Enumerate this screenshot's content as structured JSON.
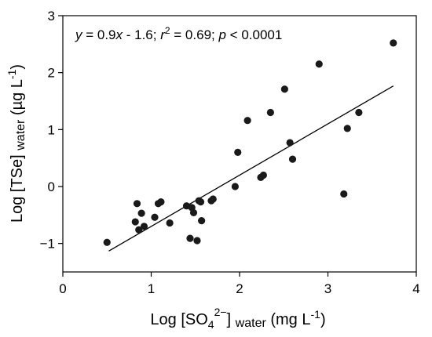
{
  "chart_data": {
    "type": "scatter",
    "xlabel": {
      "prefix": "Log [SO",
      "sub1": "4",
      "sup1": "2−",
      "mid": "] ",
      "sub2": "water",
      "suffix1": " (mg L",
      "sup2": "-1",
      "suffix2": ")"
    },
    "ylabel": {
      "prefix": "Log [TSe] ",
      "sub": "water",
      "suffix1": " (µg L",
      "sup": "-1",
      "suffix2": ")"
    },
    "annotation": {
      "y_var": "y",
      "eq1": " = 0.9",
      "x_var": "x",
      "eq2": " - 1.6; ",
      "r_var": "r",
      "r_sup": "2",
      "eq3": " = 0.69; ",
      "p_var": "p",
      "eq4": " < 0.0001"
    },
    "xlim": [
      0,
      4
    ],
    "ylim": [
      -1.5,
      3
    ],
    "xticks": [
      0,
      1,
      2,
      3,
      4
    ],
    "yticks": [
      -1,
      0,
      1,
      2,
      3
    ],
    "grid": false,
    "points": [
      {
        "x": 0.5,
        "y": -0.98
      },
      {
        "x": 0.82,
        "y": -0.62
      },
      {
        "x": 0.84,
        "y": -0.3
      },
      {
        "x": 0.86,
        "y": -0.76
      },
      {
        "x": 0.89,
        "y": -0.47
      },
      {
        "x": 0.92,
        "y": -0.7
      },
      {
        "x": 1.04,
        "y": -0.54
      },
      {
        "x": 1.08,
        "y": -0.3
      },
      {
        "x": 1.11,
        "y": -0.27
      },
      {
        "x": 1.21,
        "y": -0.64
      },
      {
        "x": 1.4,
        "y": -0.34
      },
      {
        "x": 1.44,
        "y": -0.91
      },
      {
        "x": 1.46,
        "y": -0.37
      },
      {
        "x": 1.48,
        "y": -0.46
      },
      {
        "x": 1.52,
        "y": -0.95
      },
      {
        "x": 1.54,
        "y": -0.25
      },
      {
        "x": 1.56,
        "y": -0.27
      },
      {
        "x": 1.57,
        "y": -0.6
      },
      {
        "x": 1.68,
        "y": -0.25
      },
      {
        "x": 1.7,
        "y": -0.22
      },
      {
        "x": 1.95,
        "y": 0.0
      },
      {
        "x": 1.98,
        "y": 0.6
      },
      {
        "x": 2.09,
        "y": 1.16
      },
      {
        "x": 2.24,
        "y": 0.16
      },
      {
        "x": 2.27,
        "y": 0.2
      },
      {
        "x": 2.35,
        "y": 1.3
      },
      {
        "x": 2.51,
        "y": 1.71
      },
      {
        "x": 2.57,
        "y": 0.77
      },
      {
        "x": 2.6,
        "y": 0.48
      },
      {
        "x": 2.9,
        "y": 2.15
      },
      {
        "x": 3.18,
        "y": -0.13
      },
      {
        "x": 3.22,
        "y": 1.02
      },
      {
        "x": 3.35,
        "y": 1.3
      },
      {
        "x": 3.74,
        "y": 2.52
      }
    ],
    "fit": {
      "slope": 0.9,
      "intercept": -1.6,
      "x_range": [
        0.52,
        3.74
      ]
    }
  }
}
